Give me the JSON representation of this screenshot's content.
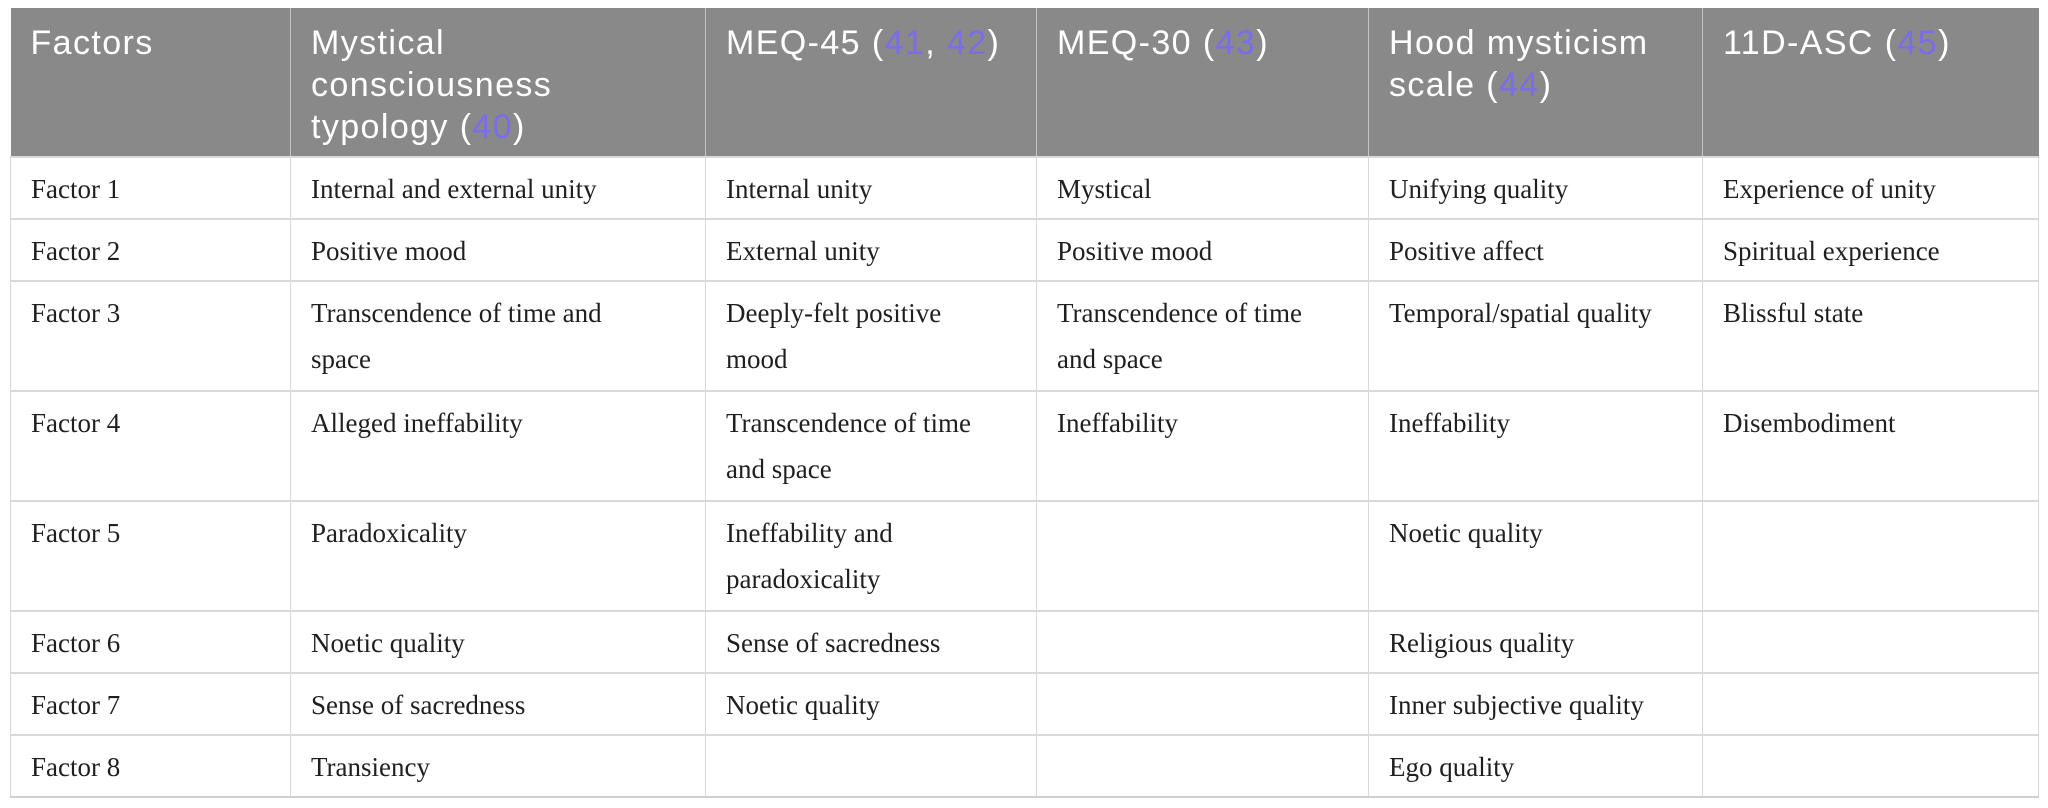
{
  "table": {
    "columns": [
      {
        "id": "factors",
        "label": "Factors",
        "cites": []
      },
      {
        "id": "mystical-consciousness-typology",
        "label": "Mystical consciousness typology",
        "cites": [
          "40"
        ]
      },
      {
        "id": "meq-45",
        "label": "MEQ-45",
        "cites": [
          "41",
          "42"
        ]
      },
      {
        "id": "meq-30",
        "label": "MEQ-30",
        "cites": [
          "43"
        ]
      },
      {
        "id": "hood-mysticism-scale",
        "label": "Hood mysticism scale",
        "cites": [
          "44"
        ]
      },
      {
        "id": "11d-asc",
        "label": "11D-ASC",
        "cites": [
          "45"
        ]
      }
    ],
    "rows": [
      {
        "cells": [
          "Factor 1",
          "Internal and external unity",
          "Internal unity",
          "Mystical",
          "Unifying quality",
          "Experience of unity"
        ]
      },
      {
        "cells": [
          "Factor 2",
          "Positive mood",
          "External unity",
          "Positive mood",
          "Positive affect",
          "Spiritual experience"
        ]
      },
      {
        "cells": [
          "Factor 3",
          "Transcendence of time and space",
          "Deeply-felt positive mood",
          "Transcendence of time and space",
          "Temporal/spatial quality",
          "Blissful state"
        ]
      },
      {
        "cells": [
          "Factor 4",
          "Alleged ineffability",
          "Transcendence of time and space",
          "Ineffability",
          "Ineffability",
          "Disembodiment"
        ]
      },
      {
        "cells": [
          "Factor 5",
          "Paradoxicality",
          "Ineffability and paradoxicality",
          "",
          "Noetic quality",
          ""
        ]
      },
      {
        "cells": [
          "Factor 6",
          "Noetic quality",
          "Sense of sacredness",
          "",
          "Religious quality",
          ""
        ]
      },
      {
        "cells": [
          "Factor 7",
          "Sense of sacredness",
          "Noetic quality",
          "",
          "Inner subjective quality",
          ""
        ]
      },
      {
        "cells": [
          "Factor 8",
          "Transiency",
          "",
          "",
          "Ego quality",
          ""
        ]
      }
    ],
    "colors": {
      "header_bg": "#898989",
      "header_text": "#ffffff",
      "citation": "#7b6cea",
      "body_text": "#1f1f1f",
      "border": "#d9d9d9",
      "border_strong": "#cfcfcf"
    }
  }
}
